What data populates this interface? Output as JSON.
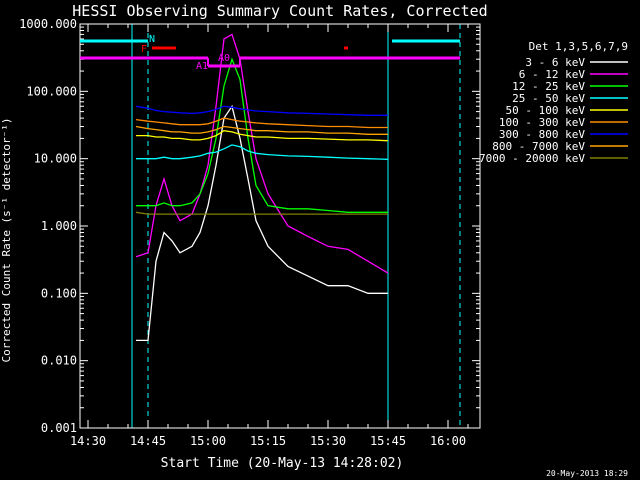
{
  "chart_data": {
    "type": "line",
    "title": "HESSI Observing Summary Count Rates, Corrected",
    "xlabel": "Start Time (20-May-13 14:28:02)",
    "ylabel": "Corrected Count Rate (s⁻¹ detector⁻¹)",
    "yscale": "log",
    "ylim": [
      0.001,
      1000
    ],
    "xlim": [
      "14:28",
      "16:08"
    ],
    "x_ticks": [
      "14:30",
      "14:45",
      "15:00",
      "15:15",
      "15:30",
      "15:45",
      "16:00"
    ],
    "y_ticks": [
      "0.001",
      "0.010",
      "0.100",
      "1.000",
      "10.000",
      "100.000",
      "1000.000"
    ],
    "legend_title": "Det 1,3,5,6,7,9",
    "legend_position": "right",
    "x_times": [
      "14:42",
      "14:45",
      "14:47",
      "14:49",
      "14:51",
      "14:53",
      "14:56",
      "14:58",
      "15:00",
      "15:02",
      "15:04",
      "15:06",
      "15:08",
      "15:10",
      "15:12",
      "15:15",
      "15:20",
      "15:25",
      "15:30",
      "15:35",
      "15:40",
      "15:45"
    ],
    "series": [
      {
        "name": "3 - 6 keV",
        "color": "#ffffff",
        "values": [
          0.02,
          0.02,
          0.3,
          0.8,
          0.6,
          0.4,
          0.5,
          0.8,
          2,
          8,
          40,
          60,
          20,
          5,
          1.2,
          0.5,
          0.25,
          0.18,
          0.13,
          0.13,
          0.1,
          0.1
        ]
      },
      {
        "name": "6 - 12 keV",
        "color": "#ff00ff",
        "values": [
          0.35,
          0.4,
          2,
          5,
          2,
          1.2,
          1.5,
          3,
          8,
          60,
          600,
          700,
          300,
          50,
          10,
          3,
          1,
          0.7,
          0.5,
          0.45,
          0.3,
          0.2
        ]
      },
      {
        "name": "12 - 25 keV",
        "color": "#00ff00",
        "values": [
          2,
          2,
          2,
          2.2,
          2,
          2,
          2.2,
          3,
          6,
          20,
          120,
          300,
          150,
          20,
          4,
          2,
          1.8,
          1.8,
          1.7,
          1.6,
          1.6,
          1.6
        ]
      },
      {
        "name": "25 - 50 keV",
        "color": "#00ffff",
        "values": [
          10,
          10,
          10,
          10.5,
          10,
          10,
          10.5,
          11,
          12,
          12.5,
          14,
          16,
          15,
          13,
          12,
          11.5,
          11,
          10.8,
          10.5,
          10.2,
          10,
          9.8
        ]
      },
      {
        "name": "50 - 100 keV",
        "color": "#ffff00",
        "values": [
          22,
          22,
          21,
          21,
          20,
          20,
          19,
          19,
          20,
          22,
          26,
          25,
          23,
          22,
          21,
          21,
          20,
          20,
          19.5,
          19,
          19,
          18.5
        ]
      },
      {
        "name": "100 - 300 keV",
        "color": "#ff8c00",
        "values": [
          38,
          36,
          35,
          34,
          33,
          32,
          32,
          32,
          33,
          36,
          40,
          38,
          36,
          35,
          34,
          33,
          32,
          31,
          30,
          30,
          29,
          29
        ]
      },
      {
        "name": "300 - 800 keV",
        "color": "#0000ff",
        "values": [
          60,
          56,
          52,
          50,
          49,
          48,
          47,
          48,
          50,
          54,
          60,
          58,
          55,
          53,
          51,
          50,
          48,
          47,
          46,
          45,
          44,
          44
        ]
      },
      {
        "name": "800 - 7000 keV",
        "color": "#ffa500",
        "values": [
          30,
          28,
          27,
          26,
          25,
          25,
          24,
          24,
          25,
          27,
          30,
          29,
          28,
          27,
          26,
          26,
          25,
          25,
          24,
          24,
          23,
          23
        ]
      },
      {
        "name": "7000 - 20000 keV",
        "color": "#808000",
        "values": [
          1.6,
          1.5,
          1.5,
          1.5,
          1.5,
          1.5,
          1.5,
          1.5,
          1.5,
          1.5,
          1.5,
          1.5,
          1.5,
          1.5,
          1.5,
          1.5,
          1.5,
          1.5,
          1.5,
          1.5,
          1.5,
          1.5
        ]
      }
    ],
    "annotations": [
      {
        "text": "N",
        "color": "#00ffff"
      },
      {
        "text": "F",
        "color": "#ff0000"
      },
      {
        "text": "A1",
        "color": "#ff00ff"
      },
      {
        "text": "A0",
        "color": "#ff00ff"
      }
    ],
    "footer_date": "20-May-2013 18:29"
  }
}
